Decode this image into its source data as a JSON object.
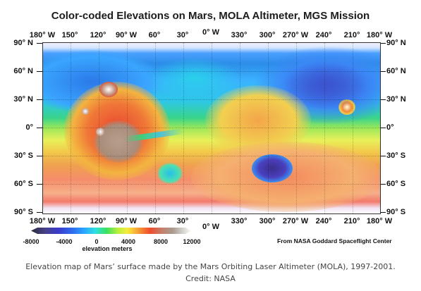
{
  "figure": {
    "title": "Color-coded Elevations on Mars, MOLA Altimeter, MGS Mission",
    "longitude_labels": [
      "180° W",
      "150°",
      "120°",
      "90° W",
      "60°",
      "30°",
      "0° W",
      "330°",
      "300°",
      "270° W",
      "240°",
      "210°",
      "180° W"
    ],
    "latitude_labels_left": [
      "90° N",
      "60° N",
      "30° N",
      "0°",
      "30° S",
      "60° S",
      "90° S"
    ],
    "latitude_labels_right": [
      "90° N",
      "60° N",
      "30° N",
      "0°",
      "30° S",
      "60° S",
      "90° S"
    ],
    "colorbar": {
      "tick_labels": [
        "-8000",
        "-4000",
        "0",
        "4000",
        "8000",
        "12000"
      ],
      "unit_label": "elevation meters"
    },
    "credit_line": "From NASA Goddard Spaceflight Center"
  },
  "caption": "Elevation map of Mars’ surface made by the Mars Orbiting Laser Altimeter (MOLA), 1997-2001. Credit: NASA"
}
